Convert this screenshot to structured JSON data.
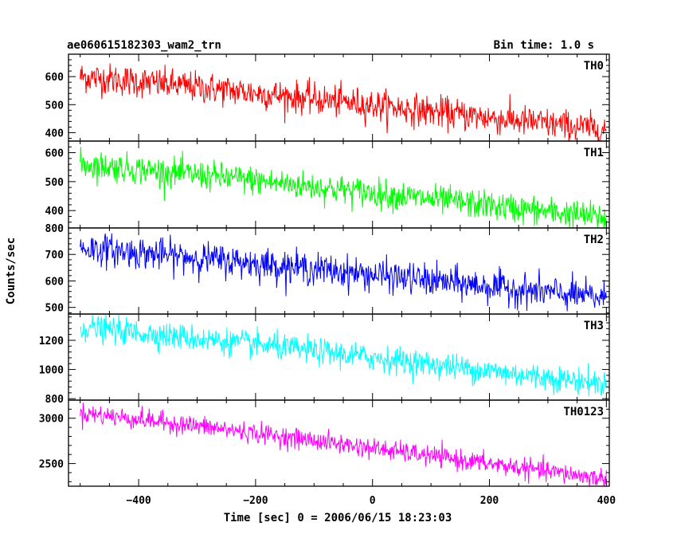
{
  "chart_data": {
    "type": "line",
    "title": "ae060615182303_wam2_trn",
    "bin_time": "Bin time: 1.0 s",
    "xlabel": "Time [sec] 0 = 2006/06/15 18:23:03",
    "ylabel": "Counts/sec",
    "xlim": [
      -520,
      405
    ],
    "xticks": [
      -400,
      -200,
      0,
      200,
      400
    ],
    "x_start": -500,
    "x_end": 400,
    "grid": false,
    "panels": [
      {
        "name": "TH0",
        "color": "#ff0000",
        "ylim": [
          370,
          680
        ],
        "yticks": [
          400,
          500,
          600
        ],
        "start_value": 600,
        "end_value": 410,
        "noise_sd": 28
      },
      {
        "name": "TH1",
        "color": "#00ff00",
        "ylim": [
          340,
          640
        ],
        "yticks": [
          400,
          500,
          600
        ],
        "start_value": 560,
        "end_value": 375,
        "noise_sd": 25
      },
      {
        "name": "TH2",
        "color": "#0000ff",
        "ylim": [
          475,
          800
        ],
        "yticks": [
          500,
          600,
          700,
          800
        ],
        "start_value": 725,
        "end_value": 535,
        "noise_sd": 30
      },
      {
        "name": "TH3",
        "color": "#00ffff",
        "ylim": [
          790,
          1380
        ],
        "yticks": [
          800,
          1000,
          1200
        ],
        "start_value": 1290,
        "end_value": 900,
        "noise_sd": 45
      },
      {
        "name": "TH0123",
        "color": "#ff00ff",
        "ylim": [
          2250,
          3200
        ],
        "yticks": [
          2500,
          3000
        ],
        "start_value": 3060,
        "end_value": 2330,
        "noise_sd": 55
      }
    ]
  }
}
